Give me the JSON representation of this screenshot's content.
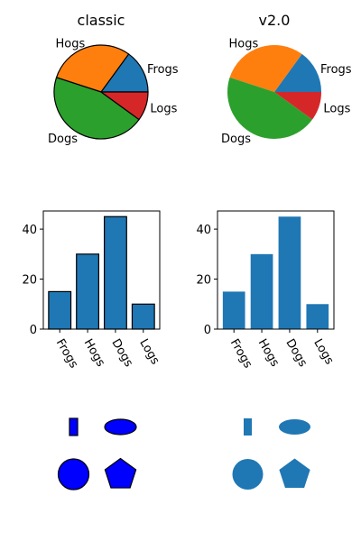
{
  "chart_data": [
    {
      "type": "pie",
      "title": "classic",
      "style": "classic",
      "labels": [
        "Frogs",
        "Hogs",
        "Dogs",
        "Logs"
      ],
      "values": [
        15,
        30,
        45,
        10
      ],
      "colors": [
        "#1f77b4",
        "#ff7f0e",
        "#2ca02c",
        "#d62728"
      ],
      "edge_color": "#000000"
    },
    {
      "type": "pie",
      "title": "v2.0",
      "style": "v2.0",
      "labels": [
        "Frogs",
        "Hogs",
        "Dogs",
        "Logs"
      ],
      "values": [
        15,
        30,
        45,
        10
      ],
      "colors": [
        "#1f77b4",
        "#ff7f0e",
        "#2ca02c",
        "#d62728"
      ],
      "edge_color": null
    },
    {
      "type": "bar",
      "style": "classic",
      "categories": [
        "Frogs",
        "Hogs",
        "Dogs",
        "Logs"
      ],
      "values": [
        15,
        30,
        45,
        10
      ],
      "ylim": [
        0,
        47.25
      ],
      "yticks": [
        0,
        20,
        40
      ],
      "bar_color": "#1f77b4",
      "edge_color": "#000000",
      "xtick_rotation": -60
    },
    {
      "type": "bar",
      "style": "v2.0",
      "categories": [
        "Frogs",
        "Hogs",
        "Dogs",
        "Logs"
      ],
      "values": [
        15,
        30,
        45,
        10
      ],
      "ylim": [
        0,
        47.25
      ],
      "yticks": [
        0,
        20,
        40
      ],
      "bar_color": "#1f77b4",
      "edge_color": null,
      "xtick_rotation": -60
    }
  ],
  "patches": [
    {
      "style": "classic",
      "fill": "#0000ff",
      "edge": "#000000",
      "shapes": [
        "rectangle",
        "ellipse",
        "circle",
        "pentagon"
      ]
    },
    {
      "style": "v2.0",
      "fill": "#1f77b4",
      "edge": null,
      "shapes": [
        "rectangle",
        "ellipse",
        "circle",
        "pentagon"
      ]
    }
  ]
}
